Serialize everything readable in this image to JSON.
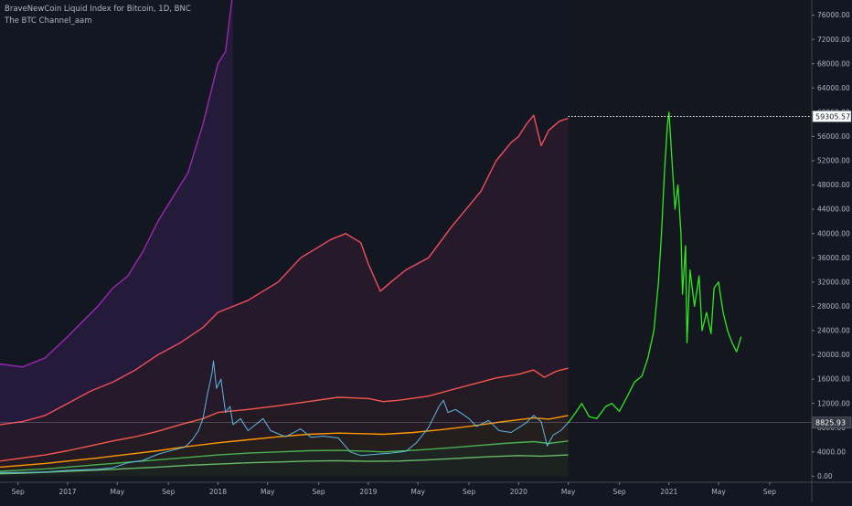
{
  "header": {
    "title": "BraveNewCoin Liquid Index for Bitcoin, 1D, BNC",
    "indicator": "The BTC Channel_aam"
  },
  "colors": {
    "background": "#131722",
    "forecast_bg": "#141720",
    "grid": "#1e222d",
    "axis_text": "#b2b5be",
    "price": "#5fb7e5",
    "forecast": "#2eeb1c"
  },
  "chart_data": {
    "type": "line",
    "title": "BraveNewCoin Liquid Index for Bitcoin, 1D, BNC",
    "xlabel": "",
    "ylabel": "",
    "ylim": [
      -1000,
      78500
    ],
    "x_range": [
      2016.55,
      2021.95
    ],
    "x_ticks": [
      {
        "t": 2016.67,
        "label": "Sep"
      },
      {
        "t": 2017.0,
        "label": "2017"
      },
      {
        "t": 2017.33,
        "label": "May"
      },
      {
        "t": 2017.67,
        "label": "Sep"
      },
      {
        "t": 2018.0,
        "label": "2018"
      },
      {
        "t": 2018.33,
        "label": "May"
      },
      {
        "t": 2018.67,
        "label": "Sep"
      },
      {
        "t": 2019.0,
        "label": "2019"
      },
      {
        "t": 2019.33,
        "label": "May"
      },
      {
        "t": 2019.67,
        "label": "Sep"
      },
      {
        "t": 2020.0,
        "label": "2020"
      },
      {
        "t": 2020.33,
        "label": "May"
      },
      {
        "t": 2020.67,
        "label": "Sep"
      },
      {
        "t": 2021.0,
        "label": "2021"
      },
      {
        "t": 2021.33,
        "label": "May"
      },
      {
        "t": 2021.67,
        "label": "Sep"
      }
    ],
    "y_ticks": [
      {
        "v": 0,
        "label": "0.00"
      },
      {
        "v": 4000,
        "label": "4000.00"
      },
      {
        "v": 8000,
        "label": "8000.00"
      },
      {
        "v": 12000,
        "label": "12000.00"
      },
      {
        "v": 16000,
        "label": "16000.00"
      },
      {
        "v": 20000,
        "label": "20000.00"
      },
      {
        "v": 24000,
        "label": "24000.00"
      },
      {
        "v": 28000,
        "label": "28000.00"
      },
      {
        "v": 32000,
        "label": "32000.00"
      },
      {
        "v": 36000,
        "label": "36000.00"
      },
      {
        "v": 40000,
        "label": "40000.00"
      },
      {
        "v": 44000,
        "label": "44000.00"
      },
      {
        "v": 48000,
        "label": "48000.00"
      },
      {
        "v": 52000,
        "label": "52000.00"
      },
      {
        "v": 56000,
        "label": "56000.00"
      },
      {
        "v": 60000,
        "label": "60000.00"
      },
      {
        "v": 64000,
        "label": "64000.00"
      },
      {
        "v": 68000,
        "label": "68000.00"
      },
      {
        "v": 72000,
        "label": "72000.00"
      },
      {
        "v": 76000,
        "label": "76000.00"
      }
    ],
    "indicator_end": 2020.33,
    "grid": false,
    "series": [
      {
        "key": "band_top",
        "color": "#9c27b0",
        "fill": "#241a3a",
        "points": [
          [
            2016.55,
            18500
          ],
          [
            2016.7,
            18000
          ],
          [
            2016.85,
            19500
          ],
          [
            2017.0,
            23000
          ],
          [
            2017.1,
            25500
          ],
          [
            2017.2,
            28000
          ],
          [
            2017.3,
            31000
          ],
          [
            2017.4,
            33000
          ],
          [
            2017.5,
            37000
          ],
          [
            2017.6,
            42000
          ],
          [
            2017.7,
            46000
          ],
          [
            2017.8,
            50000
          ],
          [
            2017.9,
            58000
          ],
          [
            2018.0,
            68000
          ],
          [
            2018.05,
            70000
          ],
          [
            2018.1,
            80000
          ]
        ]
      },
      {
        "key": "band_high",
        "color": "#f04e5e",
        "fill": "#26192a",
        "points": [
          [
            2016.55,
            8500
          ],
          [
            2016.7,
            9000
          ],
          [
            2016.85,
            10000
          ],
          [
            2017.0,
            12000
          ],
          [
            2017.15,
            14000
          ],
          [
            2017.3,
            15500
          ],
          [
            2017.45,
            17500
          ],
          [
            2017.6,
            20000
          ],
          [
            2017.75,
            22000
          ],
          [
            2017.9,
            24500
          ],
          [
            2018.0,
            27000
          ],
          [
            2018.2,
            29000
          ],
          [
            2018.4,
            32000
          ],
          [
            2018.55,
            36000
          ],
          [
            2018.75,
            39000
          ],
          [
            2018.85,
            40000
          ],
          [
            2018.95,
            38500
          ],
          [
            2019.0,
            35000
          ],
          [
            2019.08,
            30500
          ],
          [
            2019.15,
            32000
          ],
          [
            2019.25,
            34000
          ],
          [
            2019.4,
            36000
          ],
          [
            2019.55,
            41000
          ],
          [
            2019.65,
            44000
          ],
          [
            2019.75,
            47000
          ],
          [
            2019.85,
            52000
          ],
          [
            2019.95,
            55000
          ],
          [
            2020.0,
            56000
          ],
          [
            2020.05,
            58000
          ],
          [
            2020.1,
            59500
          ],
          [
            2020.15,
            54500
          ],
          [
            2020.2,
            57000
          ],
          [
            2020.27,
            58500
          ],
          [
            2020.33,
            59000
          ]
        ]
      },
      {
        "key": "band_mid",
        "color": "#f4584c",
        "fill": "#231a23",
        "points": [
          [
            2016.55,
            2500
          ],
          [
            2016.7,
            3000
          ],
          [
            2016.85,
            3500
          ],
          [
            2017.0,
            4200
          ],
          [
            2017.15,
            5000
          ],
          [
            2017.3,
            5800
          ],
          [
            2017.45,
            6500
          ],
          [
            2017.6,
            7400
          ],
          [
            2017.75,
            8500
          ],
          [
            2017.9,
            9500
          ],
          [
            2018.0,
            10500
          ],
          [
            2018.2,
            11000
          ],
          [
            2018.4,
            11600
          ],
          [
            2018.6,
            12300
          ],
          [
            2018.8,
            13000
          ],
          [
            2019.0,
            12800
          ],
          [
            2019.1,
            12300
          ],
          [
            2019.2,
            12500
          ],
          [
            2019.4,
            13200
          ],
          [
            2019.55,
            14200
          ],
          [
            2019.7,
            15200
          ],
          [
            2019.85,
            16200
          ],
          [
            2020.0,
            16800
          ],
          [
            2020.1,
            17500
          ],
          [
            2020.17,
            16300
          ],
          [
            2020.25,
            17300
          ],
          [
            2020.33,
            17800
          ]
        ]
      },
      {
        "key": "band_orange",
        "color": "#ff9800",
        "fill": "#251e1e",
        "points": [
          [
            2016.55,
            1500
          ],
          [
            2016.7,
            1800
          ],
          [
            2016.85,
            2100
          ],
          [
            2017.0,
            2500
          ],
          [
            2017.2,
            3000
          ],
          [
            2017.4,
            3600
          ],
          [
            2017.6,
            4200
          ],
          [
            2017.8,
            4900
          ],
          [
            2018.0,
            5500
          ],
          [
            2018.2,
            6000
          ],
          [
            2018.4,
            6500
          ],
          [
            2018.6,
            6900
          ],
          [
            2018.8,
            7100
          ],
          [
            2019.0,
            7000
          ],
          [
            2019.1,
            6900
          ],
          [
            2019.3,
            7200
          ],
          [
            2019.5,
            7700
          ],
          [
            2019.7,
            8300
          ],
          [
            2019.9,
            9000
          ],
          [
            2020.1,
            9600
          ],
          [
            2020.2,
            9400
          ],
          [
            2020.33,
            10000
          ]
        ]
      },
      {
        "key": "band_green",
        "color": "#4caf50",
        "fill": "#1e2421",
        "points": [
          [
            2016.55,
            800
          ],
          [
            2016.7,
            1000
          ],
          [
            2016.85,
            1200
          ],
          [
            2017.0,
            1500
          ],
          [
            2017.2,
            1900
          ],
          [
            2017.4,
            2300
          ],
          [
            2017.6,
            2700
          ],
          [
            2017.8,
            3100
          ],
          [
            2018.0,
            3500
          ],
          [
            2018.2,
            3800
          ],
          [
            2018.4,
            4000
          ],
          [
            2018.6,
            4200
          ],
          [
            2018.8,
            4250
          ],
          [
            2019.0,
            4100
          ],
          [
            2019.1,
            4000
          ],
          [
            2019.3,
            4250
          ],
          [
            2019.5,
            4600
          ],
          [
            2019.7,
            5000
          ],
          [
            2019.9,
            5400
          ],
          [
            2020.1,
            5700
          ],
          [
            2020.2,
            5400
          ],
          [
            2020.33,
            5800
          ]
        ]
      },
      {
        "key": "band_low",
        "color": "#66bb6a",
        "fill": "#1c2220",
        "points": [
          [
            2016.55,
            400
          ],
          [
            2016.7,
            500
          ],
          [
            2016.85,
            650
          ],
          [
            2017.0,
            800
          ],
          [
            2017.2,
            1000
          ],
          [
            2017.4,
            1250
          ],
          [
            2017.6,
            1500
          ],
          [
            2017.8,
            1800
          ],
          [
            2018.0,
            2000
          ],
          [
            2018.2,
            2200
          ],
          [
            2018.4,
            2350
          ],
          [
            2018.6,
            2500
          ],
          [
            2018.8,
            2550
          ],
          [
            2019.0,
            2450
          ],
          [
            2019.2,
            2500
          ],
          [
            2019.4,
            2700
          ],
          [
            2019.6,
            2950
          ],
          [
            2019.8,
            3200
          ],
          [
            2020.0,
            3400
          ],
          [
            2020.15,
            3300
          ],
          [
            2020.33,
            3500
          ]
        ]
      },
      {
        "key": "price",
        "color": "#5fb7e5",
        "points": [
          [
            2016.55,
            600
          ],
          [
            2016.7,
            620
          ],
          [
            2016.85,
            700
          ],
          [
            2017.0,
            950
          ],
          [
            2017.1,
            1050
          ],
          [
            2017.2,
            1150
          ],
          [
            2017.3,
            1400
          ],
          [
            2017.4,
            2200
          ],
          [
            2017.5,
            2600
          ],
          [
            2017.6,
            3600
          ],
          [
            2017.7,
            4300
          ],
          [
            2017.78,
            4800
          ],
          [
            2017.83,
            6000
          ],
          [
            2017.87,
            7500
          ],
          [
            2017.9,
            9500
          ],
          [
            2017.93,
            13500
          ],
          [
            2017.96,
            17000
          ],
          [
            2017.97,
            19000
          ],
          [
            2017.99,
            14500
          ],
          [
            2018.02,
            16000
          ],
          [
            2018.05,
            10500
          ],
          [
            2018.08,
            11500
          ],
          [
            2018.1,
            8500
          ],
          [
            2018.15,
            9500
          ],
          [
            2018.2,
            7500
          ],
          [
            2018.25,
            8500
          ],
          [
            2018.3,
            9500
          ],
          [
            2018.35,
            7500
          ],
          [
            2018.45,
            6500
          ],
          [
            2018.55,
            7800
          ],
          [
            2018.62,
            6400
          ],
          [
            2018.7,
            6600
          ],
          [
            2018.8,
            6300
          ],
          [
            2018.88,
            4000
          ],
          [
            2018.95,
            3400
          ],
          [
            2019.05,
            3600
          ],
          [
            2019.15,
            3800
          ],
          [
            2019.25,
            4100
          ],
          [
            2019.32,
            5500
          ],
          [
            2019.4,
            8000
          ],
          [
            2019.47,
            11500
          ],
          [
            2019.5,
            12500
          ],
          [
            2019.53,
            10500
          ],
          [
            2019.58,
            11000
          ],
          [
            2019.67,
            9500
          ],
          [
            2019.72,
            8200
          ],
          [
            2019.8,
            9200
          ],
          [
            2019.87,
            7500
          ],
          [
            2019.95,
            7200
          ],
          [
            2020.05,
            8800
          ],
          [
            2020.1,
            10000
          ],
          [
            2020.15,
            9000
          ],
          [
            2020.19,
            5000
          ],
          [
            2020.23,
            6800
          ],
          [
            2020.28,
            7500
          ],
          [
            2020.33,
            8826
          ]
        ]
      },
      {
        "key": "forecast",
        "color": "#2eeb1c",
        "points": [
          [
            2020.33,
            8826
          ],
          [
            2020.38,
            10500
          ],
          [
            2020.42,
            12000
          ],
          [
            2020.47,
            9800
          ],
          [
            2020.52,
            9500
          ],
          [
            2020.58,
            11500
          ],
          [
            2020.62,
            12000
          ],
          [
            2020.67,
            10700
          ],
          [
            2020.72,
            13000
          ],
          [
            2020.77,
            15500
          ],
          [
            2020.82,
            16500
          ],
          [
            2020.86,
            19500
          ],
          [
            2020.9,
            24000
          ],
          [
            2020.93,
            32000
          ],
          [
            2020.95,
            40000
          ],
          [
            2020.97,
            50000
          ],
          [
            2020.99,
            58000
          ],
          [
            2021.0,
            60000
          ],
          [
            2021.02,
            52000
          ],
          [
            2021.04,
            44000
          ],
          [
            2021.06,
            48000
          ],
          [
            2021.08,
            40000
          ],
          [
            2021.09,
            30000
          ],
          [
            2021.11,
            38000
          ],
          [
            2021.12,
            22000
          ],
          [
            2021.14,
            34000
          ],
          [
            2021.17,
            28000
          ],
          [
            2021.2,
            33000
          ],
          [
            2021.22,
            24000
          ],
          [
            2021.25,
            27000
          ],
          [
            2021.28,
            23500
          ],
          [
            2021.3,
            31000
          ],
          [
            2021.33,
            32000
          ],
          [
            2021.36,
            27000
          ],
          [
            2021.39,
            24000
          ],
          [
            2021.42,
            22000
          ],
          [
            2021.45,
            20500
          ],
          [
            2021.48,
            23000
          ]
        ]
      }
    ],
    "price_line": {
      "value": 8825.93,
      "label": "8825.93",
      "color": "#b2b5be"
    },
    "top_line": {
      "value": 59305.57,
      "label": "59305.57",
      "color": "#ffffff"
    }
  }
}
